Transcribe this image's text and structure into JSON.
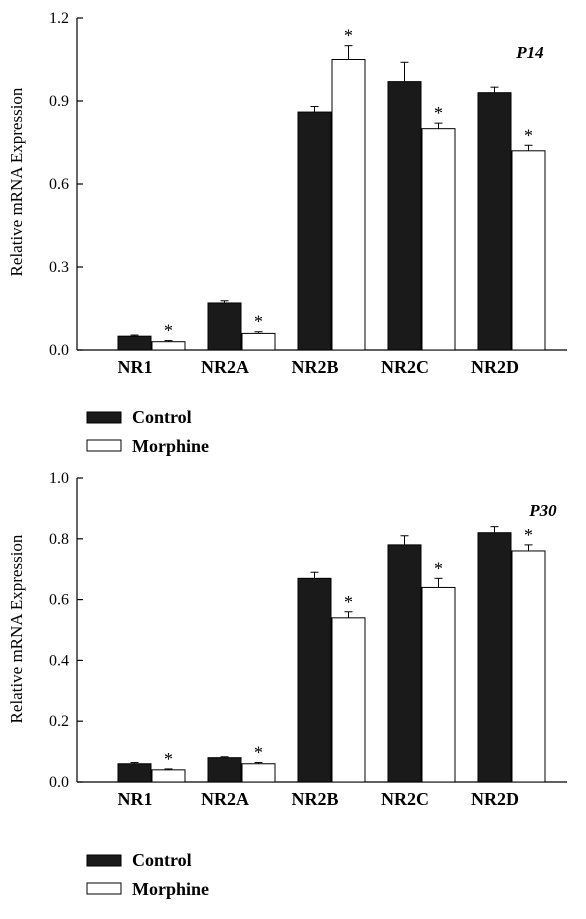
{
  "chart_data": [
    {
      "type": "bar",
      "panel_label": "P14",
      "categories": [
        "NR1",
        "NR2A",
        "NR2B",
        "NR2C",
        "NR2D"
      ],
      "ylabel": "Relative mRNA Expression",
      "ylim": [
        0,
        1.2
      ],
      "yticks": [
        "0.0",
        "0.3",
        "0.6",
        "0.9",
        "1.2"
      ],
      "ytick_values": [
        0,
        0.3,
        0.6,
        0.9,
        1.2
      ],
      "series": [
        {
          "name": "Control",
          "color": "#1a1a1a",
          "values": [
            0.05,
            0.17,
            0.86,
            0.97,
            0.93
          ],
          "errors": [
            0.004,
            0.008,
            0.02,
            0.07,
            0.02
          ]
        },
        {
          "name": "Morphine",
          "color": "#ffffff",
          "values": [
            0.03,
            0.06,
            1.05,
            0.8,
            0.72
          ],
          "errors": [
            0.004,
            0.006,
            0.05,
            0.02,
            0.02
          ]
        }
      ],
      "significance_marker": "*",
      "significant": [
        true,
        true,
        true,
        true,
        true
      ],
      "grid": false,
      "legend": {
        "position": "bottom-left",
        "items": [
          "Control",
          "Morphine"
        ]
      }
    },
    {
      "type": "bar",
      "panel_label": "P30",
      "categories": [
        "NR1",
        "NR2A",
        "NR2B",
        "NR2C",
        "NR2D"
      ],
      "ylabel": "Relative mRNA Expression",
      "ylim": [
        0,
        1.0
      ],
      "yticks": [
        "0.0",
        "0.2",
        "0.4",
        "0.6",
        "0.8",
        "1.0"
      ],
      "ytick_values": [
        0,
        0.2,
        0.4,
        0.6,
        0.8,
        1.0
      ],
      "series": [
        {
          "name": "Control",
          "color": "#1a1a1a",
          "values": [
            0.06,
            0.08,
            0.67,
            0.78,
            0.82
          ],
          "errors": [
            0.004,
            0.003,
            0.02,
            0.03,
            0.02
          ]
        },
        {
          "name": "Morphine",
          "color": "#ffffff",
          "values": [
            0.04,
            0.06,
            0.54,
            0.64,
            0.76
          ],
          "errors": [
            0.003,
            0.004,
            0.02,
            0.03,
            0.02
          ]
        }
      ],
      "significance_marker": "*",
      "significant": [
        true,
        true,
        true,
        true,
        true
      ],
      "grid": false,
      "legend": {
        "position": "bottom-left",
        "items": [
          "Control",
          "Morphine"
        ]
      }
    }
  ]
}
